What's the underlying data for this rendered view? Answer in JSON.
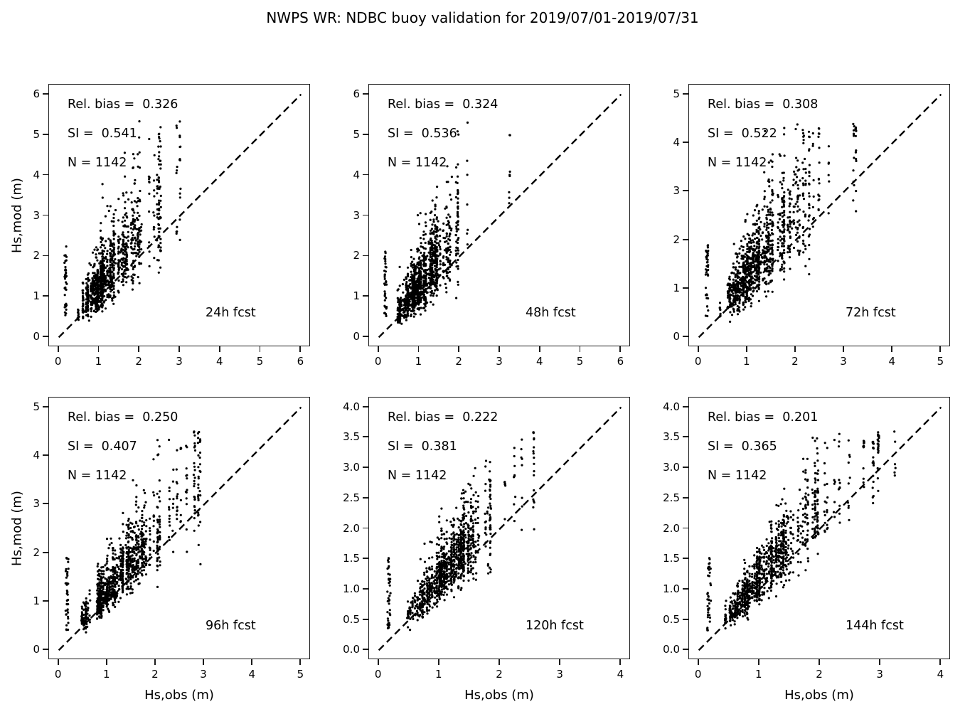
{
  "title": "NWPS WR: NDBC buoy validation for 2019/07/01-2019/07/31",
  "colors": {
    "foreground": "#000000",
    "background": "#ffffff",
    "points": "#000000",
    "identity_line": "#000000"
  },
  "chart_data": {
    "type": "scatter",
    "layout": "2 rows x 3 columns",
    "title": "NWPS WR: NDBC buoy validation for 2019/07/01-2019/07/31",
    "xlabel": "Hs,obs (m)",
    "ylabel": "Hs,mod (m)",
    "grid": false,
    "identity_line_style": "dashed black 1:1 line from origin to axis max",
    "marker": "small black dot",
    "panels": [
      {
        "fcst_label": "24h fcst",
        "stats_text": {
          "rel_bias": "Rel. bias =  0.326",
          "si": "SI =  0.541",
          "n": "N = 1142"
        },
        "stats": {
          "rel_bias": 0.326,
          "si": 0.541,
          "n": 1142
        },
        "xlim": [
          0,
          6
        ],
        "ylim": [
          0,
          6
        ],
        "xticks": [
          "0",
          "1",
          "2",
          "3",
          "4",
          "5",
          "6"
        ],
        "yticks": [
          "0",
          "1",
          "2",
          "3",
          "4",
          "5",
          "6"
        ],
        "seed": 11
      },
      {
        "fcst_label": "48h fcst",
        "stats_text": {
          "rel_bias": "Rel. bias =  0.324",
          "si": "SI =  0.536",
          "n": "N = 1142"
        },
        "stats": {
          "rel_bias": 0.324,
          "si": 0.536,
          "n": 1142
        },
        "xlim": [
          0,
          6
        ],
        "ylim": [
          0,
          6
        ],
        "xticks": [
          "0",
          "1",
          "2",
          "3",
          "4",
          "5",
          "6"
        ],
        "yticks": [
          "0",
          "1",
          "2",
          "3",
          "4",
          "5",
          "6"
        ],
        "seed": 22
      },
      {
        "fcst_label": "72h fcst",
        "stats_text": {
          "rel_bias": "Rel. bias =  0.308",
          "si": "SI =  0.522",
          "n": "N = 1142"
        },
        "stats": {
          "rel_bias": 0.308,
          "si": 0.522,
          "n": 1142
        },
        "xlim": [
          0,
          5
        ],
        "ylim": [
          0,
          5
        ],
        "xticks": [
          "0",
          "1",
          "2",
          "3",
          "4",
          "5"
        ],
        "yticks": [
          "0",
          "1",
          "2",
          "3",
          "4",
          "5"
        ],
        "seed": 33
      },
      {
        "fcst_label": "96h fcst",
        "stats_text": {
          "rel_bias": "Rel. bias =  0.250",
          "si": "SI =  0.407",
          "n": "N = 1142"
        },
        "stats": {
          "rel_bias": 0.25,
          "si": 0.407,
          "n": 1142
        },
        "xlim": [
          0,
          5
        ],
        "ylim": [
          0,
          5
        ],
        "xticks": [
          "0",
          "1",
          "2",
          "3",
          "4",
          "5"
        ],
        "yticks": [
          "0",
          "1",
          "2",
          "3",
          "4",
          "5"
        ],
        "seed": 44
      },
      {
        "fcst_label": "120h fcst",
        "stats_text": {
          "rel_bias": "Rel. bias =  0.222",
          "si": "SI =  0.381",
          "n": "N = 1142"
        },
        "stats": {
          "rel_bias": 0.222,
          "si": 0.381,
          "n": 1142
        },
        "xlim": [
          0,
          4
        ],
        "ylim": [
          0,
          4
        ],
        "xticks": [
          "0",
          "1",
          "2",
          "3",
          "4"
        ],
        "yticks": [
          "0.0",
          "0.5",
          "1.0",
          "1.5",
          "2.0",
          "2.5",
          "3.0",
          "3.5",
          "4.0"
        ],
        "seed": 55
      },
      {
        "fcst_label": "144h fcst",
        "stats_text": {
          "rel_bias": "Rel. bias =  0.201",
          "si": "SI =  0.365",
          "n": "N = 1142"
        },
        "stats": {
          "rel_bias": 0.201,
          "si": 0.365,
          "n": 1142
        },
        "xlim": [
          0,
          4
        ],
        "ylim": [
          0,
          4
        ],
        "xticks": [
          "0",
          "1",
          "2",
          "3",
          "4"
        ],
        "yticks": [
          "0.0",
          "0.5",
          "1.0",
          "1.5",
          "2.0",
          "2.5",
          "3.0",
          "3.5",
          "4.0"
        ],
        "seed": 66
      }
    ]
  }
}
